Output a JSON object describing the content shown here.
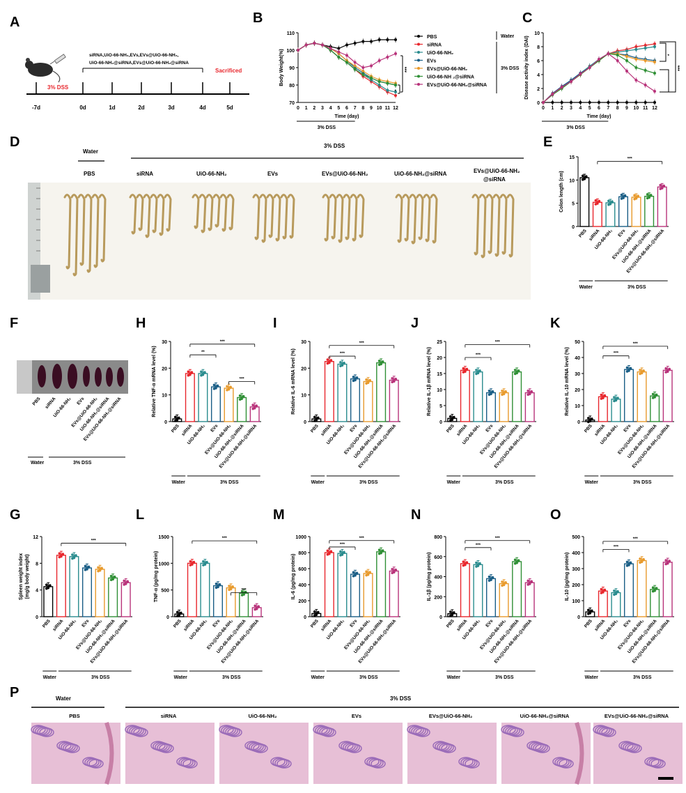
{
  "colors": {
    "PBS": "#000000",
    "siRNA": "#e8262c",
    "UiO": "#2a8c8e",
    "EVs": "#1a5e86",
    "EVsUiO": "#e89a2c",
    "UiOsiRNA": "#2f8f35",
    "EVsUiOsiRNA": "#b8327a"
  },
  "panel_letters": [
    "A",
    "B",
    "C",
    "D",
    "E",
    "F",
    "G",
    "H",
    "I",
    "J",
    "K",
    "L",
    "M",
    "N",
    "O",
    "P"
  ],
  "panelA": {
    "dss_label": "3% DSS",
    "treat_line1": "siRNA,UiO-66-NH₂,EVs,EVs@UiO-66-NH₂,",
    "treat_line2": "UiO-66-NH₂@siRNA,EVs@UiO-66-NH₂@siRNA",
    "sacrificed": "Sacrificed",
    "days": [
      "-7d",
      "0d",
      "1d",
      "2d",
      "3d",
      "4d",
      "5d"
    ]
  },
  "group_labels": [
    "PBS",
    "siRNA",
    "UiO-66-NH₂",
    "EVs",
    "EVs@UiO-66-NH₂",
    "UiO-66-NH₂@siRNA",
    "EVs@UiO-66-NH₂@siRNA"
  ],
  "group_keys": [
    "PBS",
    "siRNA",
    "UiO",
    "EVs",
    "EVsUiO",
    "UiOsiRNA",
    "EVsUiOsiRNA"
  ],
  "water_label": "Water",
  "dss_label": "3% DSS",
  "sig": {
    "three": "***",
    "two": "**",
    "one": "*"
  },
  "legend_B": {
    "water_tag": "Water",
    "dss_tag": "3% DSS",
    "labels": [
      "PBS",
      "siRNA",
      "UiO-66-NH₂",
      "EVs",
      "EVs@UiO-66-NH₂",
      "UiO-66-NH ₂@siRNA",
      "EVs@UiO-66-NH₂@siRNA"
    ]
  },
  "panelD": {
    "water": "Water",
    "dss": "3% DSS",
    "labels": [
      "PBS",
      "siRNA",
      "UiO-66-NH₂",
      "EVs",
      "EVs@UiO-66-NH₂",
      "UiO-66-NH₂@siRNA",
      "EVs@UiO-66-NH₂",
      "@siRNA"
    ]
  },
  "panelP": {
    "water": "Water",
    "dss": "3% DSS",
    "labels": [
      "PBS",
      "siRNA",
      "UiO-66-NH₂",
      "EVs",
      "EVs@UiO-66-NH₂",
      "UiO-66-NH₂@siRNA",
      "EVs@UiO-66-NH₂@siRNA"
    ]
  },
  "chart_data": [
    {
      "id": "B",
      "type": "line",
      "xlabel": "Time (day)",
      "ylabel": "Body Weight(%)",
      "x": [
        0,
        1,
        2,
        3,
        4,
        5,
        6,
        7,
        8,
        9,
        10,
        11,
        12
      ],
      "xticks": [
        "0",
        "1",
        "2",
        "3",
        "4",
        "5",
        "6",
        "7",
        "8",
        "9",
        "10",
        "11",
        "12"
      ],
      "ylim": [
        70,
        110
      ],
      "yticks": [
        70,
        80,
        90,
        100,
        110
      ],
      "bar_label": "3% DSS",
      "series": [
        {
          "name": "PBS",
          "values": [
            100,
            103,
            104,
            103,
            102,
            101,
            103,
            104,
            105,
            105,
            106,
            106,
            106
          ]
        },
        {
          "name": "siRNA",
          "values": [
            100,
            103,
            104,
            103,
            100,
            96,
            93,
            89,
            85,
            82,
            79,
            76,
            74
          ]
        },
        {
          "name": "UiO-66-NH₂",
          "values": [
            100,
            103,
            104,
            103,
            100,
            96,
            93,
            89,
            86,
            83,
            80,
            77,
            76
          ]
        },
        {
          "name": "EVs",
          "values": [
            100,
            103,
            104,
            103,
            101,
            98,
            94,
            90,
            87,
            84,
            82,
            81,
            80
          ]
        },
        {
          "name": "EVs@UiO-66-NH₂",
          "values": [
            100,
            103,
            104,
            103,
            101,
            98,
            94,
            91,
            88,
            85,
            83,
            82,
            81
          ]
        },
        {
          "name": "UiO-66-NH₂@siRNA",
          "values": [
            100,
            103,
            104,
            103,
            100,
            96,
            93,
            89,
            86,
            84,
            82,
            81,
            80
          ]
        },
        {
          "name": "EVs@UiO-66-NH₂@siRNA",
          "values": [
            100,
            103,
            104,
            103,
            101,
            99,
            97,
            93,
            90,
            91,
            94,
            96,
            98
          ]
        }
      ]
    },
    {
      "id": "C",
      "type": "line",
      "xlabel": "Time (day)",
      "ylabel": "Disease activity index (DAI)",
      "x": [
        0,
        1,
        2,
        3,
        4,
        5,
        6,
        7,
        8,
        9,
        10,
        11,
        12
      ],
      "xticks": [
        "0",
        "1",
        "2",
        "3",
        "4",
        "5",
        "6",
        "7",
        "8",
        "9",
        "10",
        "11",
        "12"
      ],
      "ylim": [
        0,
        10
      ],
      "yticks": [
        0,
        2,
        4,
        6,
        8,
        10
      ],
      "bar_label": "3% DSS",
      "series": [
        {
          "name": "PBS",
          "values": [
            0,
            0,
            0,
            0,
            0,
            0,
            0,
            0,
            0,
            0,
            0,
            0,
            0
          ]
        },
        {
          "name": "siRNA",
          "values": [
            0,
            1.2,
            2.2,
            3,
            4,
            5.2,
            6,
            7,
            7.4,
            7.6,
            8,
            8.2,
            8.4
          ]
        },
        {
          "name": "UiO-66-NH₂",
          "values": [
            0,
            1.2,
            2.2,
            3.2,
            4.2,
            5.2,
            6.2,
            7,
            7.2,
            7.4,
            7.6,
            7.8,
            8
          ]
        },
        {
          "name": "EVs",
          "values": [
            0,
            1.3,
            2.3,
            3.2,
            4.2,
            5,
            6,
            7,
            7,
            6.8,
            6.4,
            6.2,
            6
          ]
        },
        {
          "name": "EVs@UiO-66-NH₂",
          "values": [
            0,
            1.2,
            2.1,
            3,
            4,
            5,
            6,
            7,
            7,
            6.6,
            6.2,
            6,
            5.8
          ]
        },
        {
          "name": "UiO-66-NH₂@siRNA",
          "values": [
            0,
            1.1,
            2,
            3,
            4,
            5,
            6,
            7,
            6.8,
            6,
            5,
            4.6,
            4.2
          ]
        },
        {
          "name": "EVs@UiO-66-NH₂@siRNA",
          "values": [
            0,
            1.2,
            2.2,
            3,
            4.1,
            5,
            6.2,
            7,
            6,
            4.5,
            3.2,
            2.5,
            1.6
          ]
        }
      ]
    },
    {
      "id": "E",
      "type": "bar",
      "ylabel": "Colon length (cm)",
      "ylim": [
        0,
        15
      ],
      "yticks": [
        0,
        5,
        10,
        15
      ],
      "categories": [
        "PBS",
        "siRNA",
        "UiO-66-NH₂",
        "EVs",
        "EVs@UiO-66-NH₂",
        "UiO-66-NH₂@siRNA",
        "EVs@UiO-66-NH₂@siRNA"
      ],
      "values": [
        10.5,
        5.2,
        5.1,
        6.4,
        6.3,
        6.5,
        8.5
      ]
    },
    {
      "id": "G",
      "type": "bar",
      "ylabel": "Spleen weight index (mg/g body weight)",
      "ylim": [
        0,
        12
      ],
      "yticks": [
        0,
        4,
        8,
        12
      ],
      "categories": [
        "PBS",
        "siRNA",
        "UiO-66-NH₂",
        "EVs",
        "EVs@UiO-66-NH₂",
        "UiO-66-NH₂@siRNA",
        "EVs@UiO-66-NH₂@siRNA"
      ],
      "values": [
        4.5,
        9.2,
        9,
        7.3,
        7.1,
        5.8,
        5.1
      ]
    },
    {
      "id": "H",
      "type": "bar",
      "ylabel": "Relative TNF-α mRNA level (%)",
      "ylim": [
        0,
        30
      ],
      "yticks": [
        0,
        10,
        20,
        30
      ],
      "categories": [
        "PBS",
        "siRNA",
        "UiO-66-NH₂",
        "EVs",
        "EVs@UiO-66-NH₂",
        "UiO-66-NH₂@siRNA",
        "EVs@UiO-66-NH₂@siRNA"
      ],
      "values": [
        1,
        18,
        18,
        13,
        12.5,
        9,
        5.5
      ]
    },
    {
      "id": "I",
      "type": "bar",
      "ylabel": "Relative IL-6 mRNA level (%)",
      "ylim": [
        0,
        30
      ],
      "yticks": [
        0,
        10,
        20,
        30
      ],
      "categories": [
        "PBS",
        "siRNA",
        "UiO-66-NH₂",
        "EVs",
        "EVs@UiO-66-NH₂",
        "UiO-66-NH₂@siRNA",
        "EVs@UiO-66-NH₂@siRNA"
      ],
      "values": [
        1,
        22.5,
        21.5,
        16,
        15,
        22,
        15.5
      ]
    },
    {
      "id": "J",
      "type": "bar",
      "ylabel": "Relative IL-1β mRNA level (%)",
      "ylim": [
        0,
        25
      ],
      "yticks": [
        0,
        5,
        10,
        15,
        20,
        25
      ],
      "categories": [
        "PBS",
        "siRNA",
        "UiO-66-NH₂",
        "EVs",
        "EVs@UiO-66-NH₂",
        "UiO-66-NH₂@siRNA",
        "EVs@UiO-66-NH₂@siRNA"
      ],
      "values": [
        1,
        16,
        15.5,
        9,
        9,
        15.5,
        9
      ]
    },
    {
      "id": "K",
      "type": "bar",
      "ylabel": "Relative IL-10 mRNA level (%)",
      "ylim": [
        0,
        50
      ],
      "yticks": [
        0,
        10,
        20,
        30,
        40,
        50
      ],
      "categories": [
        "PBS",
        "siRNA",
        "UiO-66-NH₂",
        "EVs",
        "EVs@UiO-66-NH₂",
        "UiO-66-NH₂@siRNA",
        "EVs@UiO-66-NH₂@siRNA"
      ],
      "values": [
        1,
        15.5,
        14,
        32.5,
        31,
        16,
        32
      ]
    },
    {
      "id": "L",
      "type": "bar",
      "ylabel": "TNF-α (pg/mg protein)",
      "ylim": [
        0,
        1500
      ],
      "yticks": [
        0,
        500,
        1000,
        1500
      ],
      "categories": [
        "PBS",
        "siRNA",
        "UiO-66-NH₂",
        "EVs",
        "EVs@UiO-66-NH₂",
        "UiO-66-NH₂@siRNA",
        "EVs@UiO-66-NH₂@siRNA"
      ],
      "values": [
        50,
        1000,
        1000,
        580,
        540,
        440,
        170
      ]
    },
    {
      "id": "M",
      "type": "bar",
      "ylabel": "IL-6 (pg/mg protein)",
      "ylim": [
        0,
        1000
      ],
      "yticks": [
        0,
        200,
        400,
        600,
        800,
        1000
      ],
      "categories": [
        "PBS",
        "siRNA",
        "UiO-66-NH₂",
        "EVs",
        "EVs@UiO-66-NH₂",
        "UiO-66-NH₂@siRNA",
        "EVs@UiO-66-NH₂@siRNA"
      ],
      "values": [
        40,
        800,
        790,
        530,
        540,
        810,
        570
      ]
    },
    {
      "id": "N",
      "type": "bar",
      "ylabel": "IL-1β (pg/mg protein)",
      "ylim": [
        0,
        800
      ],
      "yticks": [
        0,
        200,
        400,
        600,
        800
      ],
      "categories": [
        "PBS",
        "siRNA",
        "UiO-66-NH₂",
        "EVs",
        "EVs@UiO-66-NH₂",
        "UiO-66-NH₂@siRNA",
        "EVs@UiO-66-NH₂@siRNA"
      ],
      "values": [
        30,
        530,
        520,
        380,
        330,
        550,
        340
      ]
    },
    {
      "id": "O",
      "type": "bar",
      "ylabel": "IL-10 (pg/mg protein)",
      "ylim": [
        0,
        500
      ],
      "yticks": [
        0,
        100,
        200,
        300,
        400,
        500
      ],
      "categories": [
        "PBS",
        "siRNA",
        "UiO-66-NH₂",
        "EVs",
        "EVs@UiO-66-NH₂",
        "UiO-66-NH₂@siRNA",
        "EVs@UiO-66-NH₂@siRNA"
      ],
      "values": [
        30,
        160,
        150,
        330,
        350,
        170,
        340
      ]
    }
  ]
}
